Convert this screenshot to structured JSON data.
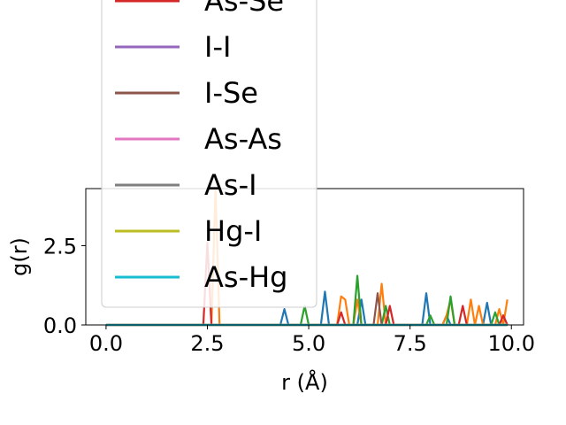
{
  "chart_data": {
    "type": "line",
    "xlabel": "r (Å)",
    "ylabel": "g(r)",
    "xlim": [
      -0.5,
      10.3
    ],
    "ylim": [
      0,
      4.3
    ],
    "xticks": [
      {
        "value": 0.0,
        "label": "0.0"
      },
      {
        "value": 2.5,
        "label": "2.5"
      },
      {
        "value": 5.0,
        "label": "5.0"
      },
      {
        "value": 7.5,
        "label": "7.5"
      },
      {
        "value": 10.0,
        "label": "10.0"
      }
    ],
    "yticks": [
      {
        "value": 0.0,
        "label": "0.0"
      },
      {
        "value": 2.5,
        "label": "2.5"
      }
    ],
    "grid": false,
    "legend_placement": "upper-left",
    "x": [
      0.0,
      0.1,
      0.2,
      0.3,
      0.4,
      0.5,
      0.6,
      0.7,
      0.8,
      0.9,
      1.0,
      1.1,
      1.2,
      1.3,
      1.4,
      1.5,
      1.6,
      1.7,
      1.8,
      1.9,
      2.0,
      2.1,
      2.2,
      2.3,
      2.4,
      2.5,
      2.6,
      2.7,
      2.8,
      2.9,
      3.0,
      3.1,
      3.2,
      3.3,
      3.4,
      3.5,
      3.6,
      3.7,
      3.8,
      3.9,
      4.0,
      4.1,
      4.2,
      4.3,
      4.4,
      4.5,
      4.6,
      4.7,
      4.8,
      4.9,
      5.0,
      5.1,
      5.2,
      5.3,
      5.4,
      5.5,
      5.6,
      5.7,
      5.8,
      5.9,
      6.0,
      6.1,
      6.2,
      6.3,
      6.4,
      6.5,
      6.6,
      6.7,
      6.8,
      6.9,
      7.0,
      7.1,
      7.2,
      7.3,
      7.4,
      7.5,
      7.6,
      7.7,
      7.8,
      7.9,
      8.0,
      8.1,
      8.2,
      8.3,
      8.4,
      8.5,
      8.6,
      8.7,
      8.8,
      8.9,
      9.0,
      9.1,
      9.2,
      9.3,
      9.4,
      9.5,
      9.6,
      9.7,
      9.8,
      9.9
    ],
    "series": [
      {
        "name": "",
        "color": "#1f77b4",
        "values": [
          0,
          0,
          0,
          0,
          0,
          0,
          0,
          0,
          0,
          0,
          0,
          0,
          0,
          0,
          0,
          0,
          0,
          0,
          0,
          0,
          0,
          0,
          0,
          0,
          0,
          0,
          0,
          0,
          0,
          0,
          0,
          0,
          0,
          0,
          0,
          0,
          0,
          0,
          0,
          0,
          0,
          0,
          0,
          0,
          0.5,
          0,
          0,
          0,
          0,
          0,
          0,
          0,
          0,
          0,
          1.05,
          0,
          0,
          0,
          0,
          0,
          0,
          0,
          0,
          0.8,
          0,
          0,
          0,
          0,
          0,
          0,
          0,
          0,
          0,
          0,
          0,
          0,
          0,
          0,
          0,
          1.0,
          0,
          0,
          0,
          0,
          0.3,
          0,
          0,
          0,
          0,
          0,
          0,
          0,
          0,
          0,
          0.7,
          0,
          0,
          0,
          0.3,
          0
        ]
      },
      {
        "name": "",
        "color": "#ff7f0e",
        "values": [
          0,
          0,
          0,
          0,
          0,
          0,
          0,
          0,
          0,
          0,
          0,
          0,
          0,
          0,
          0,
          0,
          0,
          0,
          0,
          0,
          0,
          0,
          0,
          0,
          0,
          0,
          0,
          4.3,
          0,
          0,
          0,
          0,
          0,
          0,
          0,
          0,
          0,
          0,
          0,
          0,
          0,
          0,
          0,
          0,
          0,
          0,
          0,
          0,
          0,
          0,
          0,
          0,
          0,
          0,
          0,
          0,
          0,
          0,
          0.9,
          0.8,
          0,
          0,
          0.8,
          0,
          0,
          0,
          0,
          0,
          1.3,
          0,
          0,
          0,
          0,
          0,
          0,
          0,
          0,
          0,
          0,
          0,
          0,
          0,
          0,
          0,
          0.3,
          0.8,
          0,
          0,
          0,
          0,
          0.8,
          0,
          0.6,
          0,
          0,
          0,
          0,
          0.5,
          0,
          0.8
        ]
      },
      {
        "name": "",
        "color": "#2ca02c",
        "values": [
          0,
          0,
          0,
          0,
          0,
          0,
          0,
          0,
          0,
          0,
          0,
          0,
          0,
          0,
          0,
          0,
          0,
          0,
          0,
          0,
          0,
          0,
          0,
          0,
          0,
          0,
          0,
          0,
          0,
          0,
          0,
          0,
          0,
          0,
          0,
          0,
          0,
          0,
          0,
          0,
          0,
          0,
          0,
          0,
          0,
          0,
          0,
          0,
          0,
          0.6,
          0,
          0,
          0,
          0,
          0,
          0,
          0,
          0,
          0,
          0,
          0,
          0,
          1.55,
          0,
          0,
          0,
          0,
          0,
          0,
          0.6,
          0,
          0,
          0,
          0,
          0,
          0,
          0,
          0,
          0,
          0,
          0.3,
          0,
          0,
          0,
          0,
          0.9,
          0,
          0,
          0,
          0,
          0,
          0,
          0,
          0,
          0,
          0,
          0.4,
          0,
          0,
          0
        ]
      },
      {
        "name": "As-Se",
        "color": "#d62728",
        "values": [
          0,
          0,
          0,
          0,
          0,
          0,
          0,
          0,
          0,
          0,
          0,
          0,
          0,
          0,
          0,
          0,
          0,
          0,
          0,
          0,
          0,
          0,
          0,
          0,
          0,
          2.6,
          0,
          0,
          0,
          0,
          0,
          0,
          0,
          0,
          0,
          0,
          0,
          0,
          0,
          0,
          0,
          0,
          0,
          0,
          0,
          0,
          0,
          0,
          0,
          0,
          0,
          0,
          0,
          0,
          0,
          0,
          0,
          0,
          0.4,
          0,
          0,
          0,
          0,
          0,
          0,
          0,
          0,
          0,
          0,
          0,
          0.6,
          0,
          0,
          0,
          0,
          0,
          0,
          0,
          0,
          0,
          0,
          0,
          0,
          0,
          0,
          0,
          0,
          0,
          0.6,
          0,
          0,
          0,
          0,
          0,
          0,
          0,
          0,
          0,
          0.3,
          0
        ]
      },
      {
        "name": "I-I",
        "color": "#9467bd",
        "values": [
          0,
          0,
          0,
          0,
          0,
          0,
          0,
          0,
          0,
          0,
          0,
          0,
          0,
          0,
          0,
          0,
          0,
          0,
          0,
          0,
          0,
          0,
          0,
          0,
          0,
          0,
          0,
          0,
          0,
          0,
          0,
          0,
          0,
          0,
          0,
          0,
          0,
          0,
          0,
          0,
          0,
          0,
          0,
          0,
          0,
          0,
          0,
          0,
          0,
          0,
          0,
          0,
          0,
          0,
          0,
          0,
          0,
          0,
          0,
          0,
          0,
          0,
          0,
          0,
          0,
          0,
          0,
          0,
          0,
          0,
          0,
          0,
          0,
          0,
          0,
          0,
          0,
          0,
          0,
          0,
          0,
          0,
          0,
          0,
          0,
          0,
          0,
          0,
          0,
          0,
          0,
          0,
          0,
          0,
          0,
          0,
          0,
          0,
          0,
          0
        ]
      },
      {
        "name": "I-Se",
        "color": "#8c564b",
        "values": [
          0,
          0,
          0,
          0,
          0,
          0,
          0,
          0,
          0,
          0,
          0,
          0,
          0,
          0,
          0,
          0,
          0,
          0,
          0,
          0,
          0,
          0,
          0,
          0,
          0,
          0,
          0,
          0,
          0,
          0,
          0,
          0,
          0,
          0,
          0,
          0,
          0,
          0,
          0,
          0,
          0,
          0,
          0,
          0,
          0,
          0,
          0,
          0,
          0,
          0,
          0,
          0,
          0,
          0,
          0,
          0,
          0,
          0,
          0,
          0,
          0,
          0,
          0,
          0,
          0,
          0,
          0,
          1.0,
          0,
          0,
          0,
          0,
          0,
          0,
          0,
          0,
          0,
          0,
          0,
          0,
          0,
          0,
          0,
          0,
          0,
          0,
          0,
          0,
          0,
          0,
          0,
          0,
          0,
          0,
          0,
          0,
          0,
          0,
          0,
          0
        ]
      },
      {
        "name": "As-As",
        "color": "#e377c2",
        "values": [
          0,
          0,
          0,
          0,
          0,
          0,
          0,
          0,
          0,
          0,
          0,
          0,
          0,
          0,
          0,
          0,
          0,
          0,
          0,
          0,
          0,
          0,
          0,
          0,
          0,
          0,
          0,
          0,
          0,
          0,
          0,
          0,
          0,
          0,
          0,
          0,
          0,
          0,
          0,
          0,
          0,
          0,
          0,
          0,
          0,
          0,
          0,
          0,
          0,
          0,
          0,
          0,
          0,
          0,
          0,
          0,
          0,
          0,
          0,
          0,
          0,
          0,
          0,
          0,
          0,
          0,
          0,
          0,
          0,
          0,
          0,
          0,
          0,
          0,
          0,
          0,
          0,
          0,
          0,
          0,
          0,
          0,
          0,
          0,
          0,
          0,
          0,
          0,
          0,
          0,
          0,
          0,
          0,
          0,
          0,
          0,
          0,
          0,
          0,
          0
        ]
      },
      {
        "name": "As-I",
        "color": "#7f7f7f",
        "values": [
          0,
          0,
          0,
          0,
          0,
          0,
          0,
          0,
          0,
          0,
          0,
          0,
          0,
          0,
          0,
          0,
          0,
          0,
          0,
          0,
          0,
          0,
          0,
          0,
          0,
          0,
          0,
          0,
          0,
          0,
          0,
          0,
          0,
          0,
          0,
          0,
          0,
          0,
          0,
          0,
          0,
          0,
          0,
          0,
          0,
          0,
          0,
          0,
          0,
          0,
          0,
          0,
          0,
          0,
          0,
          0,
          0,
          0,
          0,
          0,
          0,
          0,
          0,
          0,
          0,
          0,
          0,
          0,
          0,
          0,
          0,
          0,
          0,
          0,
          0,
          0,
          0,
          0,
          0,
          0,
          0,
          0,
          0,
          0,
          0,
          0,
          0,
          0,
          0,
          0,
          0,
          0,
          0,
          0,
          0,
          0,
          0,
          0,
          0,
          0
        ]
      },
      {
        "name": "Hg-I",
        "color": "#bcbd22",
        "values": [
          0,
          0,
          0,
          0,
          0,
          0,
          0,
          0,
          0,
          0,
          0,
          0,
          0,
          0,
          0,
          0,
          0,
          0,
          0,
          0,
          0,
          0,
          0,
          0,
          0,
          0,
          0,
          0,
          0,
          0,
          0,
          0,
          0,
          0,
          0,
          0,
          0,
          0,
          0,
          0,
          0,
          0,
          0,
          0,
          0,
          0,
          0,
          0,
          0,
          0,
          0,
          0,
          0,
          0,
          0,
          0,
          0,
          0,
          0,
          0,
          0,
          0,
          0,
          0,
          0,
          0,
          0,
          0,
          0,
          0,
          0,
          0,
          0,
          0,
          0,
          0,
          0,
          0,
          0,
          0,
          0,
          0,
          0,
          0,
          0,
          0,
          0,
          0,
          0,
          0,
          0,
          0,
          0,
          0,
          0,
          0,
          0,
          0,
          0,
          0
        ]
      },
      {
        "name": "As-Hg",
        "color": "#17becf",
        "values": [
          0,
          0,
          0,
          0,
          0,
          0,
          0,
          0,
          0,
          0,
          0,
          0,
          0,
          0,
          0,
          0,
          0,
          0,
          0,
          0,
          0,
          0,
          0,
          0,
          0,
          0,
          0,
          0,
          0,
          0,
          0,
          0,
          0,
          0,
          0,
          0,
          0,
          0,
          0,
          0,
          0,
          0,
          0,
          0,
          0,
          0,
          0,
          0,
          0,
          0,
          0,
          0,
          0,
          0,
          0,
          0,
          0,
          0,
          0,
          0,
          0,
          0,
          0,
          0,
          0,
          0,
          0,
          0,
          0,
          0,
          0,
          0,
          0,
          0,
          0,
          0,
          0,
          0,
          0,
          0,
          0,
          0,
          0,
          0,
          0,
          0,
          0,
          0,
          0,
          0,
          0,
          0,
          0,
          0,
          0,
          0,
          0,
          0,
          0,
          0
        ]
      }
    ]
  }
}
